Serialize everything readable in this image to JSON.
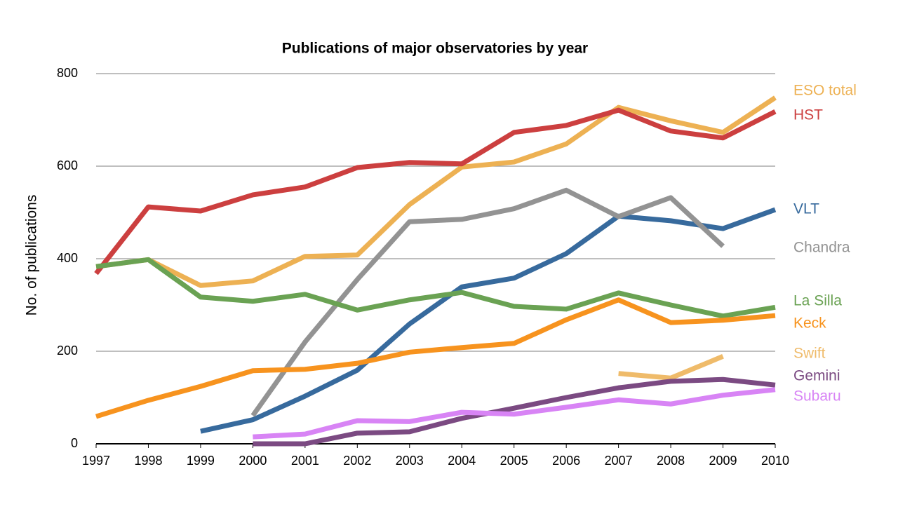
{
  "chart_data": {
    "type": "line",
    "title": "Publications of major observatories by year",
    "y_label": "No. of publications",
    "x": [
      1997,
      1998,
      1999,
      2000,
      2001,
      2002,
      2003,
      2004,
      2005,
      2006,
      2007,
      2008,
      2009,
      2010
    ],
    "xlim": [
      1997,
      2010
    ],
    "xticks": [
      1997,
      1998,
      1999,
      2000,
      2001,
      2002,
      2003,
      2004,
      2005,
      2006,
      2007,
      2008,
      2009,
      2010
    ],
    "ylim": [
      0,
      800
    ],
    "yticks": [
      0,
      200,
      400,
      600,
      800
    ],
    "grid": true,
    "series": [
      {
        "name": "ESO total",
        "color": "#edb153",
        "values": [
          383,
          398,
          342,
          352,
          405,
          408,
          517,
          598,
          609,
          648,
          727,
          698,
          673,
          748
        ]
      },
      {
        "name": "HST",
        "color": "#cc3f3f",
        "values": [
          368,
          512,
          503,
          538,
          555,
          597,
          608,
          605,
          673,
          688,
          721,
          676,
          661,
          718
        ]
      },
      {
        "name": "VLT",
        "color": "#376a9d",
        "values": [
          null,
          null,
          27,
          52,
          103,
          159,
          259,
          339,
          358,
          411,
          492,
          482,
          465,
          506
        ]
      },
      {
        "name": "Chandra",
        "color": "#939393",
        "values": [
          null,
          null,
          null,
          61,
          220,
          355,
          480,
          485,
          508,
          548,
          491,
          532,
          427,
          null
        ]
      },
      {
        "name": "La Silla",
        "color": "#6aa253",
        "values": [
          383,
          398,
          317,
          308,
          323,
          289,
          311,
          327,
          297,
          291,
          326,
          300,
          276,
          295
        ]
      },
      {
        "name": "Keck",
        "color": "#f7931e",
        "values": [
          59,
          94,
          124,
          158,
          161,
          174,
          198,
          208,
          217,
          268,
          311,
          262,
          267,
          277
        ]
      },
      {
        "name": "Swift",
        "color": "#efbb6a",
        "values": [
          null,
          null,
          null,
          null,
          null,
          null,
          null,
          null,
          null,
          null,
          152,
          142,
          189,
          null
        ]
      },
      {
        "name": "Gemini",
        "color": "#7b4a82",
        "values": [
          null,
          null,
          null,
          0,
          0,
          23,
          26,
          55,
          77,
          100,
          121,
          135,
          139,
          127
        ]
      },
      {
        "name": "Subaru",
        "color": "#d884f5",
        "values": [
          null,
          null,
          null,
          15,
          21,
          50,
          48,
          68,
          64,
          79,
          95,
          86,
          105,
          117
        ]
      }
    ]
  }
}
